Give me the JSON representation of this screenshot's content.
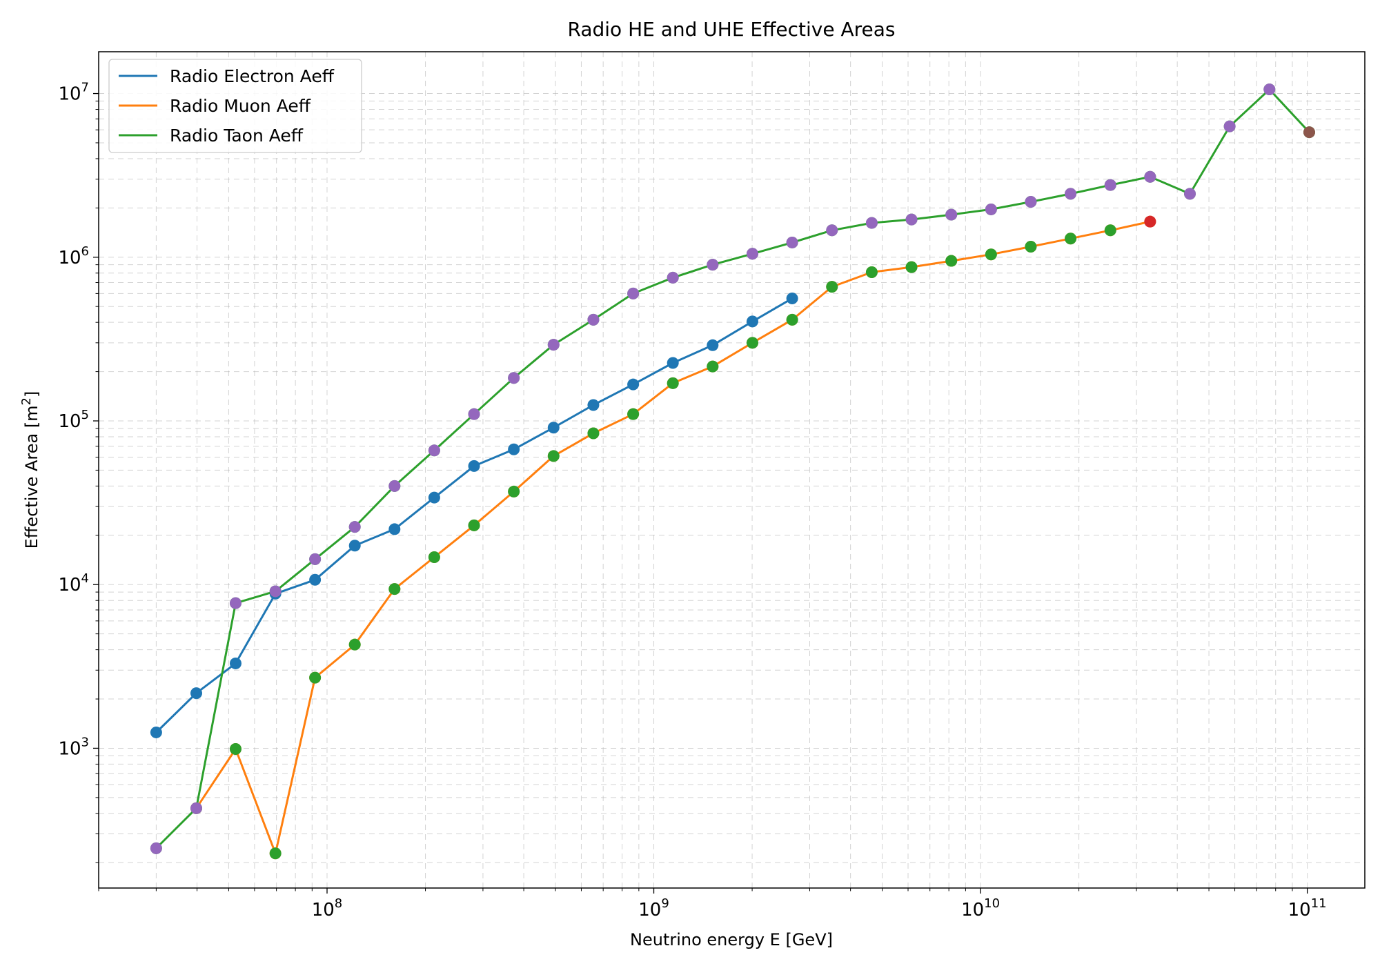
{
  "chart_data": {
    "type": "line",
    "title": "Radio HE and UHE Effective Areas",
    "xlabel": "Neutrino energy E [GeV]",
    "ylabel": "Effective Area [m",
    "ylabel_sup": "2",
    "ylabel_end": "]",
    "xscale": "log",
    "yscale": "log",
    "xlim": [
      20000000,
      150000000000
    ],
    "ylim": [
      140,
      18000000
    ],
    "grid": "both (major and minor, dashed)",
    "legend_position": "top-left",
    "x_tick_labels": [
      {
        "value": 100000000,
        "base": "10",
        "exp": "8"
      },
      {
        "value": 1000000000,
        "base": "10",
        "exp": "9"
      },
      {
        "value": 10000000000,
        "base": "10",
        "exp": "10"
      },
      {
        "value": 100000000000,
        "base": "10",
        "exp": "11"
      }
    ],
    "y_tick_labels": [
      {
        "value": 1000,
        "base": "10",
        "exp": "3"
      },
      {
        "value": 10000,
        "base": "10",
        "exp": "4"
      },
      {
        "value": 100000,
        "base": "10",
        "exp": "5"
      },
      {
        "value": 1000000,
        "base": "10",
        "exp": "6"
      },
      {
        "value": 10000000,
        "base": "10",
        "exp": "7"
      }
    ],
    "series": [
      {
        "name": "Radio Electron Aeff",
        "color": "#1f77b4",
        "x": [
          30000000,
          39800000,
          52500000,
          69500000,
          91900000,
          121600000,
          160900000,
          212900000,
          281800000,
          372900000,
          493500000,
          653200000,
          864600000,
          1144000000,
          1514000000,
          2004000000,
          2652000000
        ],
        "y": [
          1250,
          2170,
          3300,
          8800,
          10700,
          17300,
          21800,
          34000,
          53000,
          67000,
          91000,
          125000,
          167000,
          226000,
          290000,
          405000,
          560000
        ]
      },
      {
        "name": "Radio Muon Aeff",
        "color": "#ff7f0e",
        "x": [
          39800000,
          52500000,
          69500000,
          91900000,
          121600000,
          160900000,
          212900000,
          281800000,
          372900000,
          493500000,
          653200000,
          864600000,
          1144000000,
          1514000000,
          2004000000,
          2652000000,
          3510000000,
          4646000000,
          6148000000,
          8138000000,
          10770000000,
          14250000000,
          18860000000,
          24970000000,
          33040000000
        ],
        "y": [
          430,
          990,
          228,
          2700,
          4300,
          9400,
          14700,
          23000,
          37000,
          61000,
          84000,
          110000,
          170000,
          215000,
          300000,
          415000,
          660000,
          810000,
          870000,
          950000,
          1040000,
          1160000,
          1300000,
          1460000,
          1650000
        ]
      },
      {
        "name": "Radio Taon Aeff",
        "color": "#2ca02c",
        "x": [
          30000000,
          39800000,
          52500000,
          69500000,
          91900000,
          121600000,
          160900000,
          212900000,
          281800000,
          372900000,
          493500000,
          653200000,
          864600000,
          1144000000,
          1514000000,
          2004000000,
          2652000000,
          3510000000,
          4646000000,
          6148000000,
          8138000000,
          10770000000,
          14250000000,
          18860000000,
          24970000000,
          33040000000,
          43730000000,
          57870000000,
          76600000000,
          101400000000
        ],
        "y": [
          245,
          430,
          7700,
          9100,
          14300,
          22500,
          40000,
          66000,
          110000,
          183000,
          292000,
          415000,
          600000,
          750000,
          900000,
          1050000,
          1230000,
          1460000,
          1620000,
          1700000,
          1820000,
          1960000,
          2180000,
          2440000,
          2760000,
          3100000,
          2440000,
          6300000,
          10600000,
          5800000
        ]
      }
    ],
    "marker_overlays": [
      {
        "color": "#2ca02c",
        "x": [
          52500000,
          69500000,
          91900000,
          121600000,
          160900000,
          212900000,
          281800000,
          372900000,
          493500000,
          653200000,
          864600000,
          1144000000,
          1514000000,
          2004000000,
          2652000000,
          3510000000,
          4646000000,
          6148000000,
          8138000000,
          10770000000,
          14250000000,
          18860000000,
          24970000000
        ],
        "y": [
          990,
          228,
          2700,
          4300,
          9400,
          14700,
          23000,
          37000,
          61000,
          84000,
          110000,
          170000,
          215000,
          300000,
          415000,
          660000,
          810000,
          870000,
          950000,
          1040000,
          1160000,
          1300000,
          1460000
        ]
      },
      {
        "color": "#d62728",
        "x": [
          33040000000
        ],
        "y": [
          1650000
        ]
      },
      {
        "color": "#9467bd",
        "x": [
          30000000,
          39800000,
          52500000,
          69500000,
          91900000,
          121600000,
          160900000,
          212900000,
          281800000,
          372900000,
          493500000,
          653200000,
          864600000,
          1144000000,
          1514000000,
          2004000000,
          2652000000,
          3510000000,
          4646000000,
          6148000000,
          8138000000,
          10770000000,
          14250000000,
          18860000000,
          24970000000,
          33040000000,
          43730000000,
          57870000000,
          76600000000
        ],
        "y": [
          245,
          430,
          7700,
          9100,
          14300,
          22500,
          40000,
          66000,
          110000,
          183000,
          292000,
          415000,
          600000,
          750000,
          900000,
          1050000,
          1230000,
          1460000,
          1620000,
          1700000,
          1820000,
          1960000,
          2180000,
          2440000,
          2760000,
          3100000,
          2440000,
          6300000,
          10600000
        ]
      },
      {
        "color": "#8c564b",
        "x": [
          101400000000
        ],
        "y": [
          5800000
        ]
      }
    ]
  }
}
